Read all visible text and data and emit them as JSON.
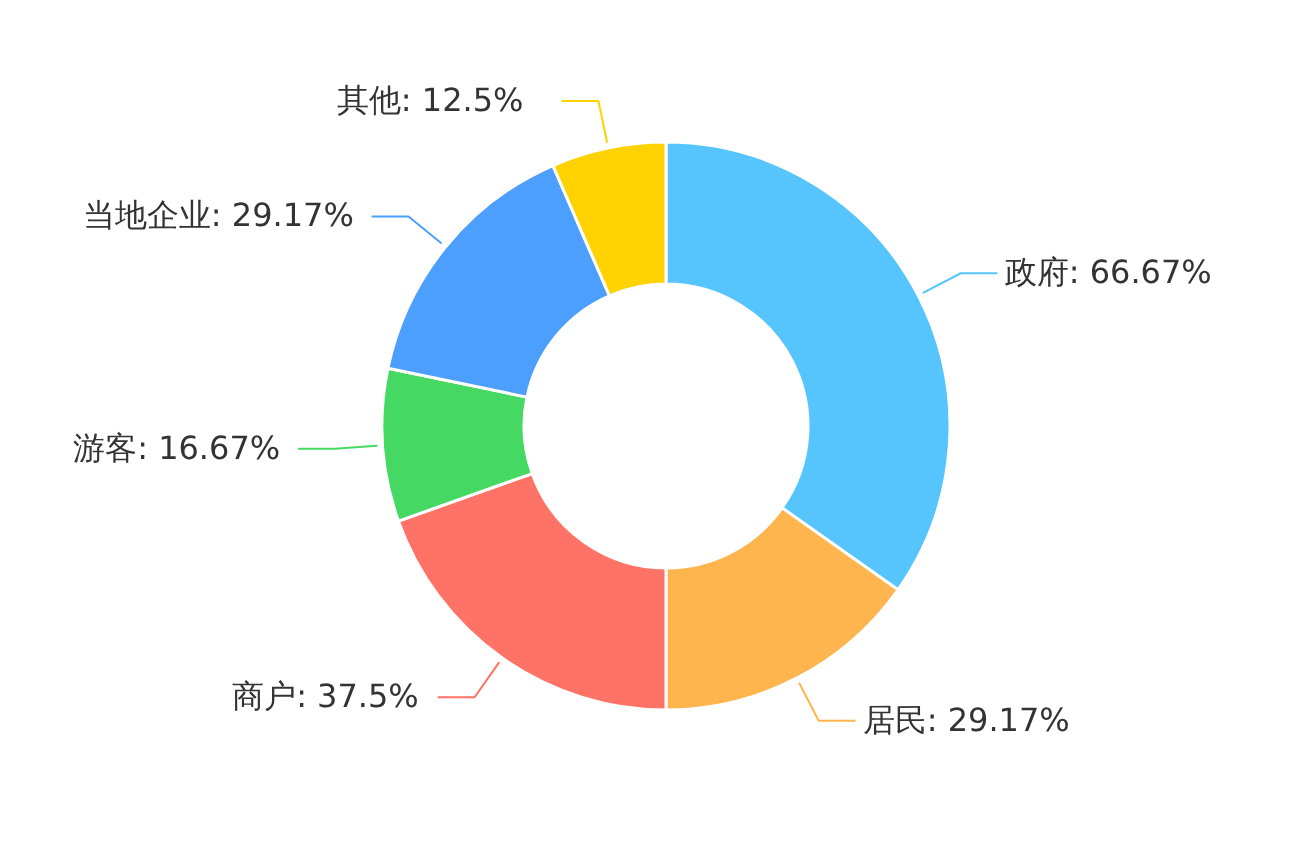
{
  "chart_data": {
    "type": "donut",
    "categories": [
      "政府",
      "居民",
      "商户",
      "游客",
      "当地企业",
      "其他"
    ],
    "values": [
      66.67,
      29.17,
      37.5,
      16.67,
      29.17,
      12.5
    ],
    "colors": [
      "#56c5fd",
      "#ffb54d",
      "#ff7366",
      "#45d963",
      "#4c9eff",
      "#ffd200"
    ],
    "value_labels": [
      ": 66.67%",
      ": 29.17%",
      ": 37.5%",
      ": 16.67%",
      ": 29.17%",
      " : 12.5%"
    ]
  }
}
